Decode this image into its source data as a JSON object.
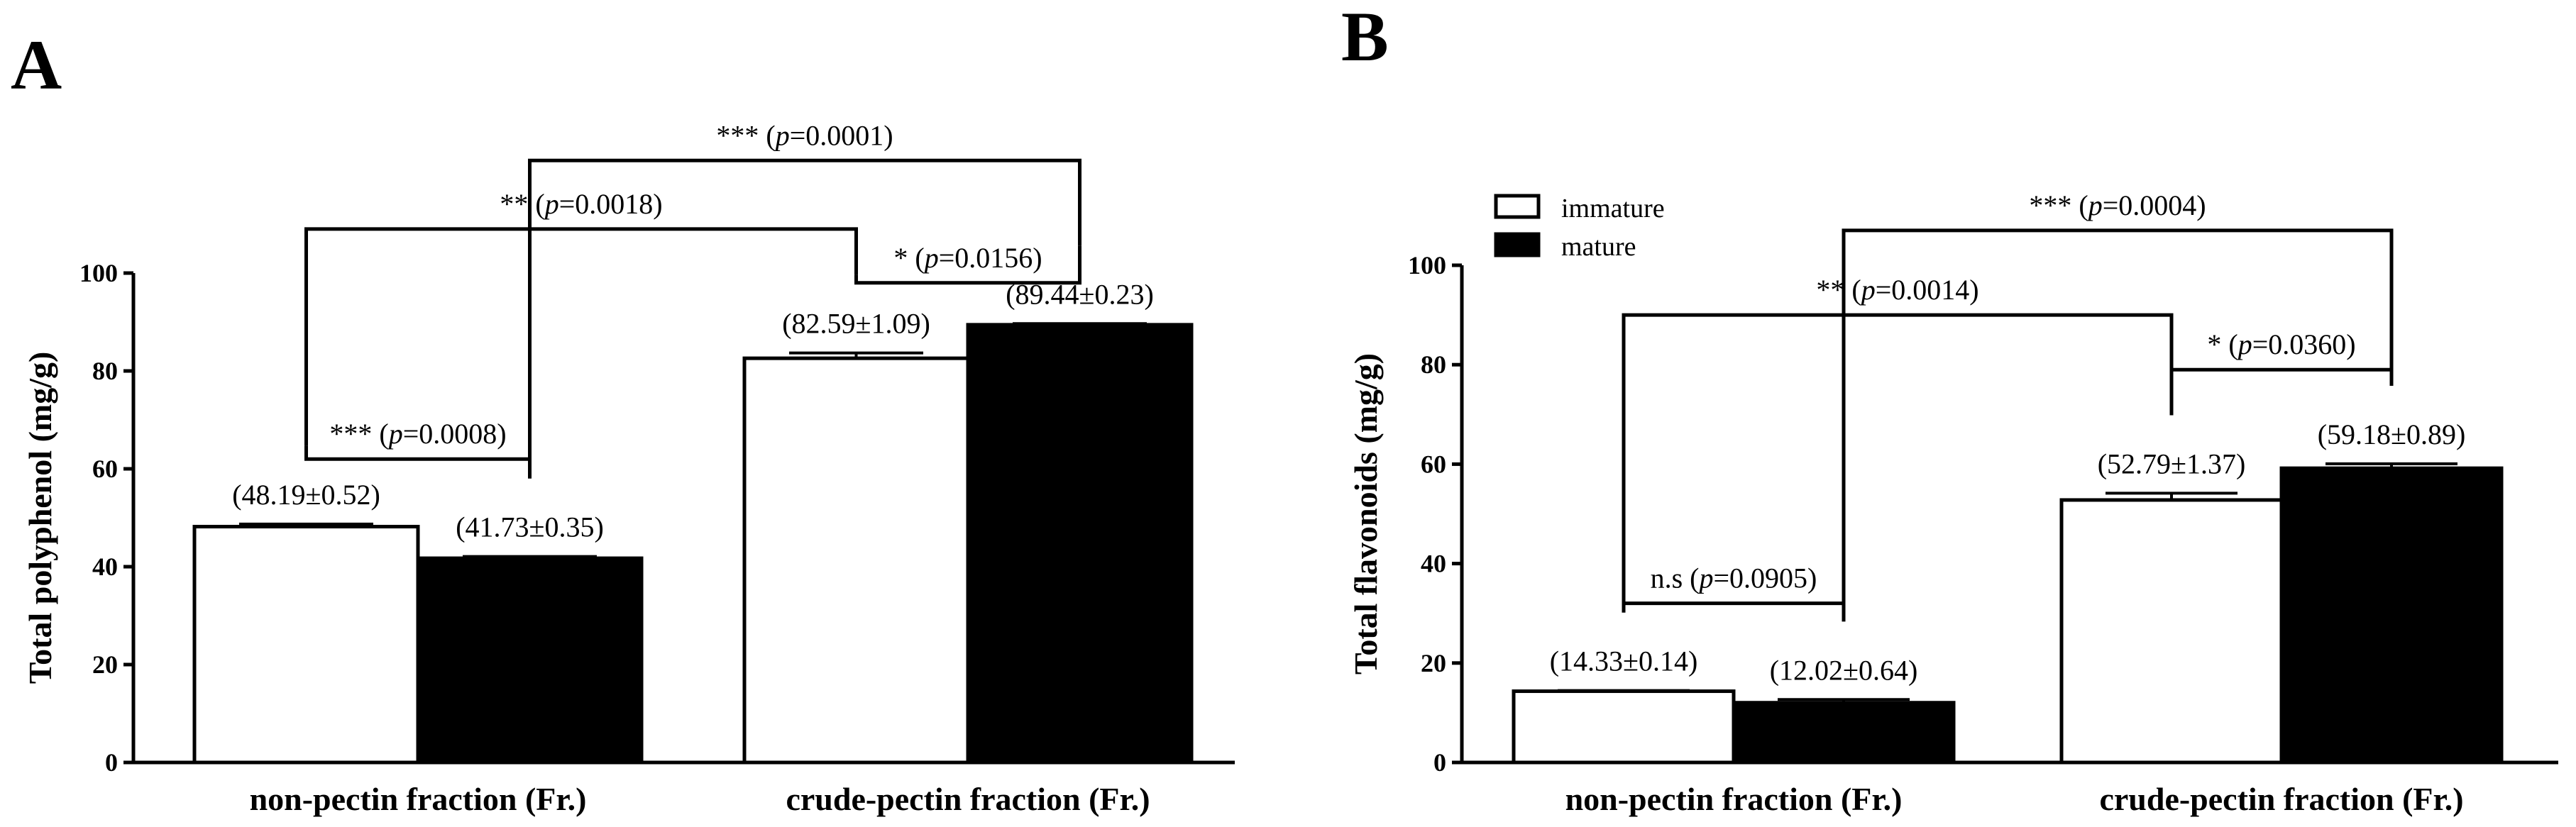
{
  "colors": {
    "immature": "#ffffff",
    "mature": "#000000",
    "stroke": "#000000"
  },
  "legend": [
    {
      "series": "immature",
      "label": "immature"
    },
    {
      "series": "mature",
      "label": "mature"
    }
  ],
  "chart_data": [
    {
      "panel": "A",
      "type": "bar",
      "ylabel": "Total polyphenol (mg/g)",
      "ylim": [
        0,
        100
      ],
      "yticks": [
        "0",
        "20",
        "40",
        "60",
        "80",
        "100"
      ],
      "categories": [
        "non-pectin fraction (Fr.)",
        "crude-pectin fraction (Fr.)"
      ],
      "series": [
        {
          "name": "immature",
          "values": [
            48.19,
            82.59
          ],
          "errors": [
            0.52,
            1.09
          ],
          "labels": [
            "(48.19±0.52)",
            "(82.59±1.09)"
          ]
        },
        {
          "name": "mature",
          "values": [
            41.73,
            89.44
          ],
          "errors": [
            0.35,
            0.23
          ],
          "labels": [
            "(41.73±0.35)",
            "(89.44±0.23)"
          ]
        }
      ],
      "comparisons": [
        {
          "a": [
            0,
            "immature"
          ],
          "b": [
            0,
            "mature"
          ],
          "level": 62,
          "stars": "***",
          "p": "p",
          "rest": "=0.0008)"
        },
        {
          "a": [
            1,
            "immature"
          ],
          "b": [
            1,
            "mature"
          ],
          "level": 98,
          "stars": "*",
          "p": "p",
          "rest": "=0.0156)"
        },
        {
          "a": [
            0,
            "immature"
          ],
          "b": [
            1,
            "immature"
          ],
          "level": 109,
          "stars": "**",
          "p": "p",
          "rest": "=0.0018)"
        },
        {
          "a": [
            0,
            "mature"
          ],
          "b": [
            1,
            "mature"
          ],
          "level": 123,
          "stars": "***",
          "p": "p",
          "rest": "=0.0001)"
        }
      ]
    },
    {
      "panel": "B",
      "type": "bar",
      "ylabel": "Total flavonoids (mg/g)",
      "ylim": [
        0,
        100
      ],
      "yticks": [
        "0",
        "20",
        "40",
        "60",
        "80",
        "100"
      ],
      "categories": [
        "non-pectin fraction (Fr.)",
        "crude-pectin fraction (Fr.)"
      ],
      "series": [
        {
          "name": "immature",
          "values": [
            14.33,
            52.79
          ],
          "errors": [
            0.14,
            1.37
          ],
          "labels": [
            "(14.33±0.14)",
            "(52.79±1.37)"
          ]
        },
        {
          "name": "mature",
          "values": [
            12.02,
            59.18
          ],
          "errors": [
            0.64,
            0.89
          ],
          "labels": [
            "(12.02±0.64)",
            "(59.18±0.89)"
          ]
        }
      ],
      "comparisons": [
        {
          "a": [
            0,
            "immature"
          ],
          "b": [
            0,
            "mature"
          ],
          "level": 32,
          "stars": "n.s",
          "p": "p",
          "rest": "=0.0905)"
        },
        {
          "a": [
            1,
            "immature"
          ],
          "b": [
            1,
            "mature"
          ],
          "level": 79,
          "stars": "*",
          "p": "p",
          "rest": "=0.0360)"
        },
        {
          "a": [
            0,
            "immature"
          ],
          "b": [
            1,
            "immature"
          ],
          "level": 90,
          "stars": "**",
          "p": "p",
          "rest": "=0.0014)"
        },
        {
          "a": [
            0,
            "mature"
          ],
          "b": [
            1,
            "mature"
          ],
          "level": 107,
          "stars": "***",
          "p": "p",
          "rest": "=0.0004)"
        }
      ]
    }
  ]
}
